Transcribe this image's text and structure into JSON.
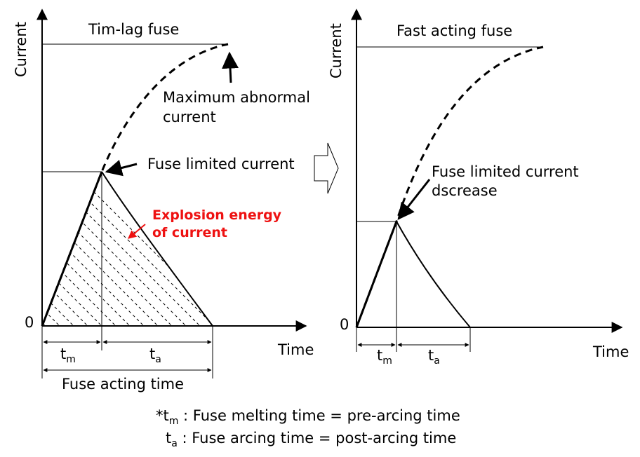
{
  "left_panel": {
    "y_axis_label": "Current",
    "x_axis_label": "Time",
    "origin_label": "0",
    "title": "Tim-lag fuse",
    "max_abnormal_line1": "Maximum abnormal",
    "max_abnormal_line2": "current",
    "fuse_limited": "Fuse limited current",
    "explosion_line1": "Explosion energy",
    "explosion_line2": "of current",
    "tm_label": "t",
    "tm_sub": "m",
    "ta_label": "t",
    "ta_sub": "a",
    "acting_time": "Fuse acting time"
  },
  "right_panel": {
    "y_axis_label": "Current",
    "x_axis_label": "Time",
    "origin_label": "0",
    "title": "Fast acting fuse",
    "fuse_limited_line1": "Fuse limited current",
    "fuse_limited_line2": "dscrease",
    "tm_label": "t",
    "tm_sub": "m",
    "ta_label": "t",
    "ta_sub": "a"
  },
  "footnote": {
    "line1_prefix": "*t",
    "line1_sub": "m",
    "line1_text": " : Fuse melting time = pre-arcing time",
    "line2_prefix": "t",
    "line2_sub": "a",
    "line2_text": " : Fuse arcing time = post-arcing time"
  },
  "colors": {
    "annotation_red": "#ee1111"
  }
}
